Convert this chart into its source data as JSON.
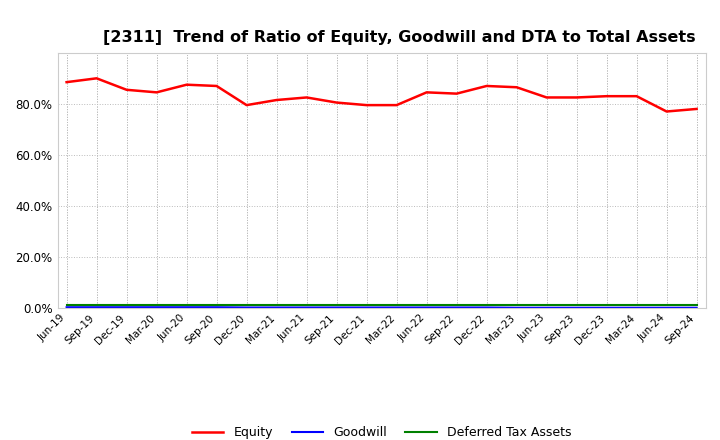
{
  "title": "[2311]  Trend of Ratio of Equity, Goodwill and DTA to Total Assets",
  "x_labels": [
    "Jun-19",
    "Sep-19",
    "Dec-19",
    "Mar-20",
    "Jun-20",
    "Sep-20",
    "Dec-20",
    "Mar-21",
    "Jun-21",
    "Sep-21",
    "Dec-21",
    "Mar-22",
    "Jun-22",
    "Sep-22",
    "Dec-22",
    "Mar-23",
    "Jun-23",
    "Sep-23",
    "Dec-23",
    "Mar-24",
    "Jun-24",
    "Sep-24"
  ],
  "equity": [
    88.5,
    90.0,
    85.5,
    84.5,
    87.5,
    87.0,
    79.5,
    81.5,
    82.5,
    80.5,
    79.5,
    79.5,
    84.5,
    84.0,
    87.0,
    86.5,
    82.5,
    82.5,
    83.0,
    83.0,
    77.0,
    78.0
  ],
  "goodwill": [
    0.3,
    0.3,
    0.3,
    0.3,
    0.3,
    0.3,
    0.2,
    0.2,
    0.2,
    0.2,
    0.2,
    0.2,
    0.2,
    0.2,
    0.2,
    0.1,
    0.1,
    0.1,
    0.1,
    0.1,
    0.1,
    0.1
  ],
  "dta": [
    1.0,
    1.0,
    1.0,
    1.0,
    1.0,
    1.0,
    1.0,
    1.0,
    1.0,
    1.0,
    1.0,
    1.0,
    1.0,
    1.0,
    1.0,
    1.0,
    1.0,
    1.0,
    1.0,
    1.0,
    1.0,
    1.0
  ],
  "equity_color": "#ff0000",
  "goodwill_color": "#0000ff",
  "dta_color": "#008000",
  "ylim": [
    0,
    100
  ],
  "yticks": [
    0,
    20,
    40,
    60,
    80
  ],
  "background_color": "#ffffff",
  "grid_color": "#bbbbbb",
  "title_fontsize": 11.5
}
